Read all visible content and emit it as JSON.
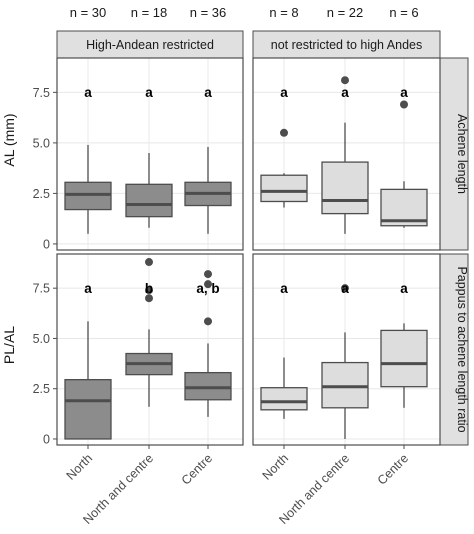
{
  "colors": {
    "restricted_fill": "#8c8c8c",
    "unrestricted_fill": "#dddddd",
    "box_line": "#4d4d4d",
    "outlier": "#4d4d4d",
    "panel_border": "#4d4d4d",
    "grid": "#e8e8e8",
    "strip_fill": "#e0e0e0"
  },
  "chart_data": {
    "type": "boxplot",
    "facet_columns": [
      "High-Andean restricted",
      "not restricted to high Andes"
    ],
    "facet_rows": [
      "Achene length",
      "Pappus to achene length ratio"
    ],
    "row_ylabels": [
      "AL (mm)",
      "PL/AL"
    ],
    "categories": [
      "North",
      "North and centre",
      "Centre"
    ],
    "n_labels": [
      [
        "n = 30",
        "n = 18",
        "n = 36"
      ],
      [
        "n = 8",
        "n = 22",
        "n = 6"
      ]
    ],
    "yticks": [
      0,
      2.5,
      5.0,
      7.5
    ],
    "ytick_labels": [
      "0",
      "2.5",
      "5.0",
      "7.5"
    ],
    "ylim": [
      -0.3,
      9.2
    ],
    "grid": true,
    "panels": [
      {
        "row": 0,
        "col": 0,
        "boxes": [
          {
            "category": "North",
            "min": 0.5,
            "q1": 1.7,
            "median": 2.45,
            "q3": 3.05,
            "max": 4.9,
            "outliers": [],
            "sig": "a"
          },
          {
            "category": "North and centre",
            "min": 0.8,
            "q1": 1.35,
            "median": 1.95,
            "q3": 2.95,
            "max": 4.5,
            "outliers": [],
            "sig": "a"
          },
          {
            "category": "Centre",
            "min": 0.5,
            "q1": 1.9,
            "median": 2.5,
            "q3": 3.05,
            "max": 4.8,
            "outliers": [],
            "sig": "a"
          }
        ]
      },
      {
        "row": 0,
        "col": 1,
        "boxes": [
          {
            "category": "North",
            "min": 1.8,
            "q1": 2.1,
            "median": 2.6,
            "q3": 3.4,
            "max": 3.5,
            "outliers": [
              5.5
            ],
            "sig": "a"
          },
          {
            "category": "North and centre",
            "min": 0.5,
            "q1": 1.5,
            "median": 2.15,
            "q3": 4.05,
            "max": 6.0,
            "outliers": [
              8.1
            ],
            "sig": "a"
          },
          {
            "category": "Centre",
            "min": 0.8,
            "q1": 0.9,
            "median": 1.15,
            "q3": 2.7,
            "max": 3.1,
            "outliers": [
              6.9
            ],
            "sig": "a"
          }
        ]
      },
      {
        "row": 1,
        "col": 0,
        "boxes": [
          {
            "category": "North",
            "min": 0.0,
            "q1": 0.0,
            "median": 1.9,
            "q3": 2.95,
            "max": 5.85,
            "outliers": [],
            "sig": "a"
          },
          {
            "category": "North and centre",
            "min": 1.6,
            "q1": 3.2,
            "median": 3.75,
            "q3": 4.25,
            "max": 5.45,
            "outliers": [
              7.0,
              7.4,
              8.8
            ],
            "sig": "b"
          },
          {
            "category": "Centre",
            "min": 1.1,
            "q1": 1.95,
            "median": 2.55,
            "q3": 3.3,
            "max": 4.75,
            "outliers": [
              5.85,
              7.7,
              8.2
            ],
            "sig": "a, b"
          }
        ]
      },
      {
        "row": 1,
        "col": 1,
        "boxes": [
          {
            "category": "North",
            "min": 1.0,
            "q1": 1.45,
            "median": 1.85,
            "q3": 2.55,
            "max": 4.05,
            "outliers": [],
            "sig": "a"
          },
          {
            "category": "North and centre",
            "min": 0.0,
            "q1": 1.55,
            "median": 2.6,
            "q3": 3.8,
            "max": 5.3,
            "outliers": [
              7.5
            ],
            "sig": "a"
          },
          {
            "category": "Centre",
            "min": 1.55,
            "q1": 2.6,
            "median": 3.75,
            "q3": 5.4,
            "max": 5.75,
            "outliers": [],
            "sig": "a"
          }
        ]
      }
    ]
  }
}
